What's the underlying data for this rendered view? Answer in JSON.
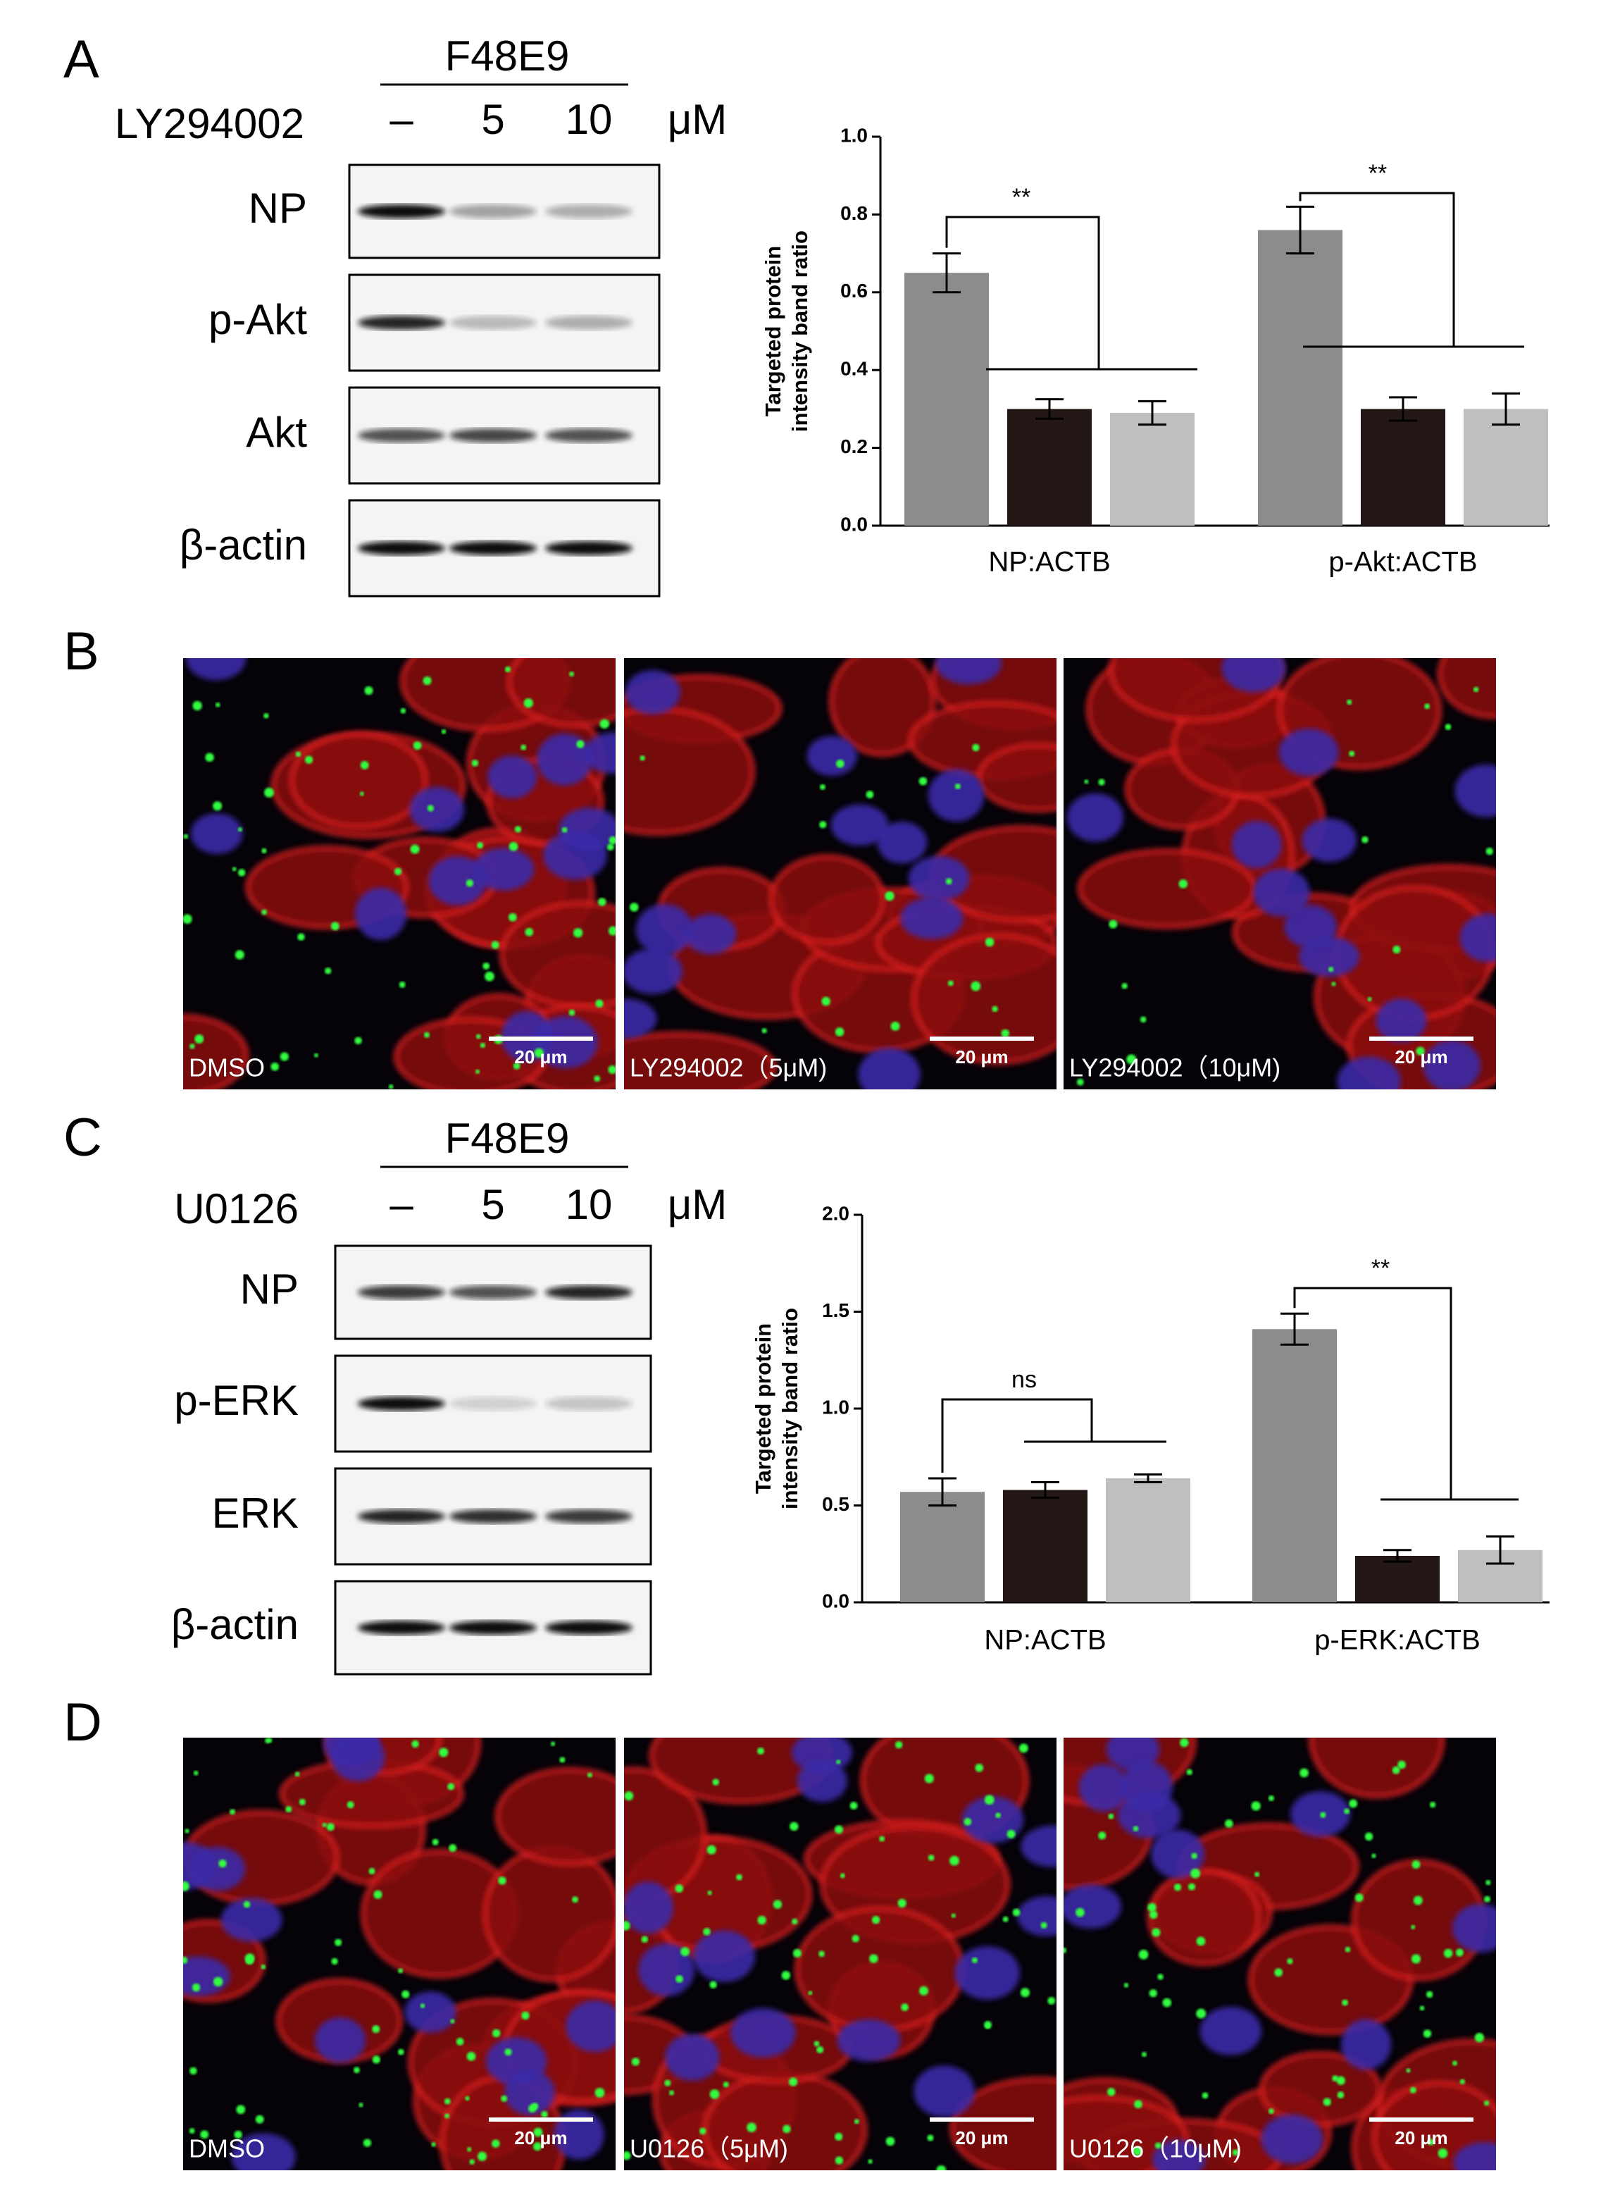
{
  "panel_labels": [
    "A",
    "B",
    "C",
    "D"
  ],
  "blots": [
    {
      "header": "F48E9",
      "treatment": "LY294002",
      "doses": [
        "–",
        "5",
        "10"
      ],
      "unit": "μM",
      "rows": [
        "NP",
        "p-Akt",
        "Akt",
        "β-actin"
      ]
    },
    {
      "header": "F48E9",
      "treatment": "U0126",
      "doses": [
        "–",
        "5",
        "10"
      ],
      "unit": "μM",
      "rows": [
        "NP",
        "p-ERK",
        "ERK",
        "β-actin"
      ]
    }
  ],
  "micrographs": [
    {
      "labels": [
        "DMSO",
        "LY294002（5μM)",
        "LY294002（10μM)"
      ],
      "scale_bar": "20 μm"
    },
    {
      "labels": [
        "DMSO",
        "U0126（5μM)",
        "U0126（10μM)"
      ],
      "scale_bar": "20 μm"
    }
  ],
  "chart_data": [
    {
      "type": "bar",
      "y_label": [
        "Targeted protein",
        "intensity band ratio"
      ],
      "categories": [
        "NP:ACTB",
        "p-Akt:ACTB"
      ],
      "series": [
        {
          "color": "#8c8c8c",
          "values": [
            0.65,
            0.76
          ],
          "errors": [
            0.05,
            0.06
          ]
        },
        {
          "color": "#231815",
          "values": [
            0.3,
            0.3
          ],
          "errors": [
            0.025,
            0.03
          ]
        },
        {
          "color": "#bfbfbf",
          "values": [
            0.29,
            0.3
          ],
          "errors": [
            0.03,
            0.04
          ]
        }
      ],
      "ylim": [
        0,
        1.0
      ],
      "yticks": [
        {
          "value": 0,
          "label": "0.0"
        },
        {
          "value": 0.2,
          "label": "0.2"
        },
        {
          "value": 0.4,
          "label": "0.4"
        },
        {
          "value": 0.6,
          "label": "0.6"
        },
        {
          "value": 0.8,
          "label": "0.8"
        },
        {
          "value": 1.0,
          "label": "1.0"
        }
      ],
      "annotations": [
        "**",
        "**"
      ]
    },
    {
      "type": "bar",
      "y_label": [
        "Targeted protein",
        "intensity band ratio"
      ],
      "categories": [
        "NP:ACTB",
        "p-ERK:ACTB"
      ],
      "series": [
        {
          "color": "#8c8c8c",
          "values": [
            0.57,
            1.41
          ],
          "errors": [
            0.07,
            0.08
          ]
        },
        {
          "color": "#231815",
          "values": [
            0.58,
            0.24
          ],
          "errors": [
            0.04,
            0.03
          ]
        },
        {
          "color": "#bfbfbf",
          "values": [
            0.64,
            0.27
          ],
          "errors": [
            0.02,
            0.07
          ]
        }
      ],
      "ylim": [
        0,
        2.0
      ],
      "yticks": [
        {
          "value": 0,
          "label": "0.0"
        },
        {
          "value": 0.5,
          "label": "0.5"
        },
        {
          "value": 1.0,
          "label": "1.0"
        },
        {
          "value": 1.5,
          "label": "1.5"
        },
        {
          "value": 2.0,
          "label": "2.0"
        }
      ],
      "annotations": [
        "ns",
        "**"
      ]
    }
  ]
}
